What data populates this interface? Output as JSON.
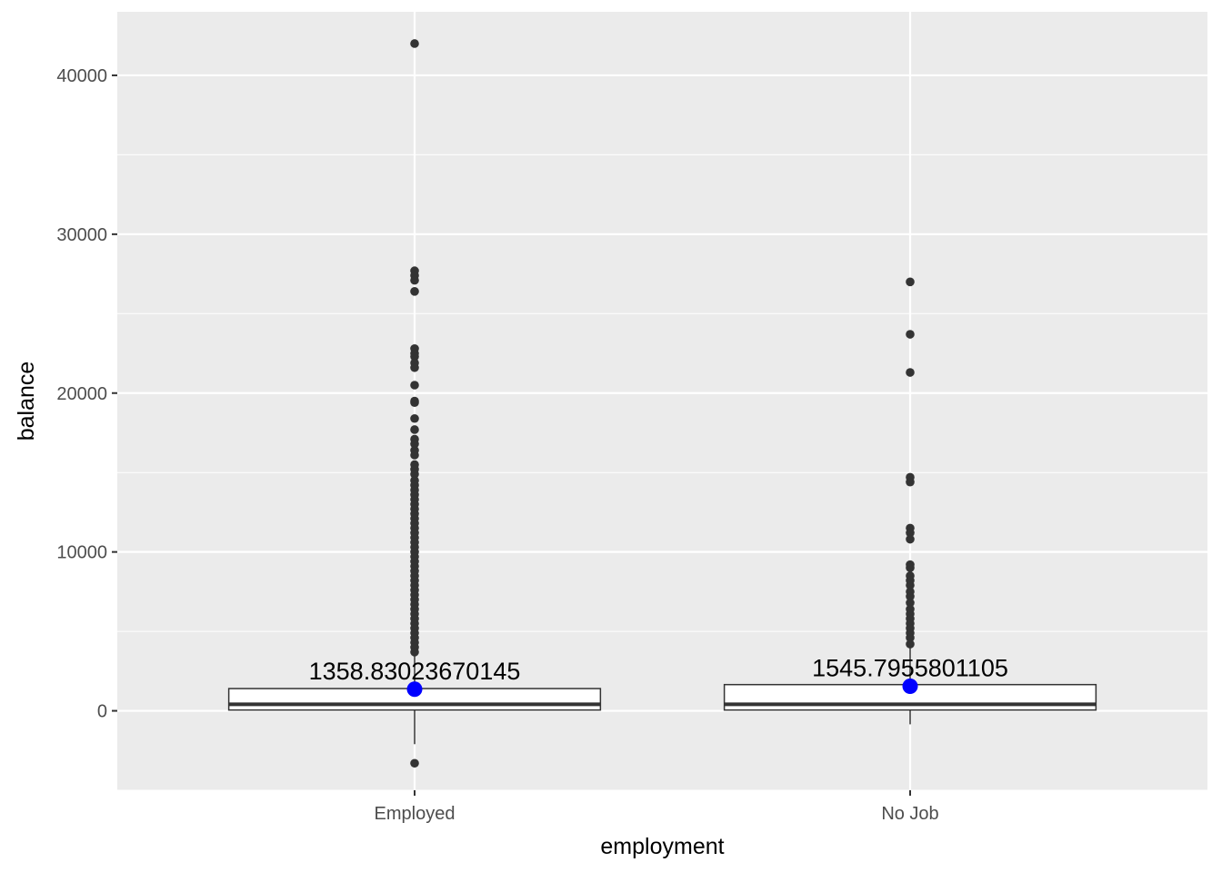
{
  "chart_data": {
    "type": "boxplot",
    "xlabel": "employment",
    "ylabel": "balance",
    "categories": [
      "Employed",
      "No Job"
    ],
    "ylim": [
      -5000,
      44000
    ],
    "y_ticks": [
      0,
      10000,
      20000,
      30000,
      40000
    ],
    "y_tick_labels": [
      "0",
      "10000",
      "20000",
      "30000",
      "40000"
    ],
    "grid": true,
    "legend": "none",
    "colors": {
      "panel": "#ebebeb",
      "grid": "#ffffff",
      "box_line": "#333333",
      "outlier": "#333333",
      "mean_point": "#0000ff"
    },
    "boxes": [
      {
        "category": "Employed",
        "q1": 50,
        "median": 410,
        "q3": 1400,
        "whisker_low": -2100,
        "whisker_high": 3450,
        "mean": 1358.83023670145,
        "mean_label": "1358.83023670145",
        "outliers": [
          42000,
          27700,
          27400,
          27100,
          26400,
          22800,
          22500,
          22300,
          21900,
          21600,
          20500,
          19500,
          19400,
          18400,
          17700,
          17100,
          16800,
          16400,
          16100,
          15500,
          15200,
          14900,
          14500,
          14200,
          13900,
          13600,
          13300,
          13000,
          12700,
          12400,
          12100,
          11800,
          11500,
          11200,
          10900,
          10600,
          10300,
          10000,
          9700,
          9400,
          9100,
          8800,
          8500,
          8200,
          7900,
          7600,
          7300,
          7000,
          6700,
          6400,
          6100,
          5800,
          5500,
          5200,
          4900,
          4600,
          4300,
          4000,
          3700,
          -3300
        ]
      },
      {
        "category": "No Job",
        "q1": 50,
        "median": 410,
        "q3": 1650,
        "whisker_low": -850,
        "whisker_high": 4000,
        "mean": 1545.7955801105,
        "mean_label": "1545.7955801105",
        "outliers": [
          27000,
          23700,
          21300,
          14700,
          14400,
          11500,
          11200,
          10800,
          9200,
          9000,
          8500,
          8200,
          7900,
          7500,
          7200,
          6800,
          6400,
          6100,
          5800,
          5500,
          5200,
          4900,
          4600,
          4200
        ]
      }
    ]
  }
}
